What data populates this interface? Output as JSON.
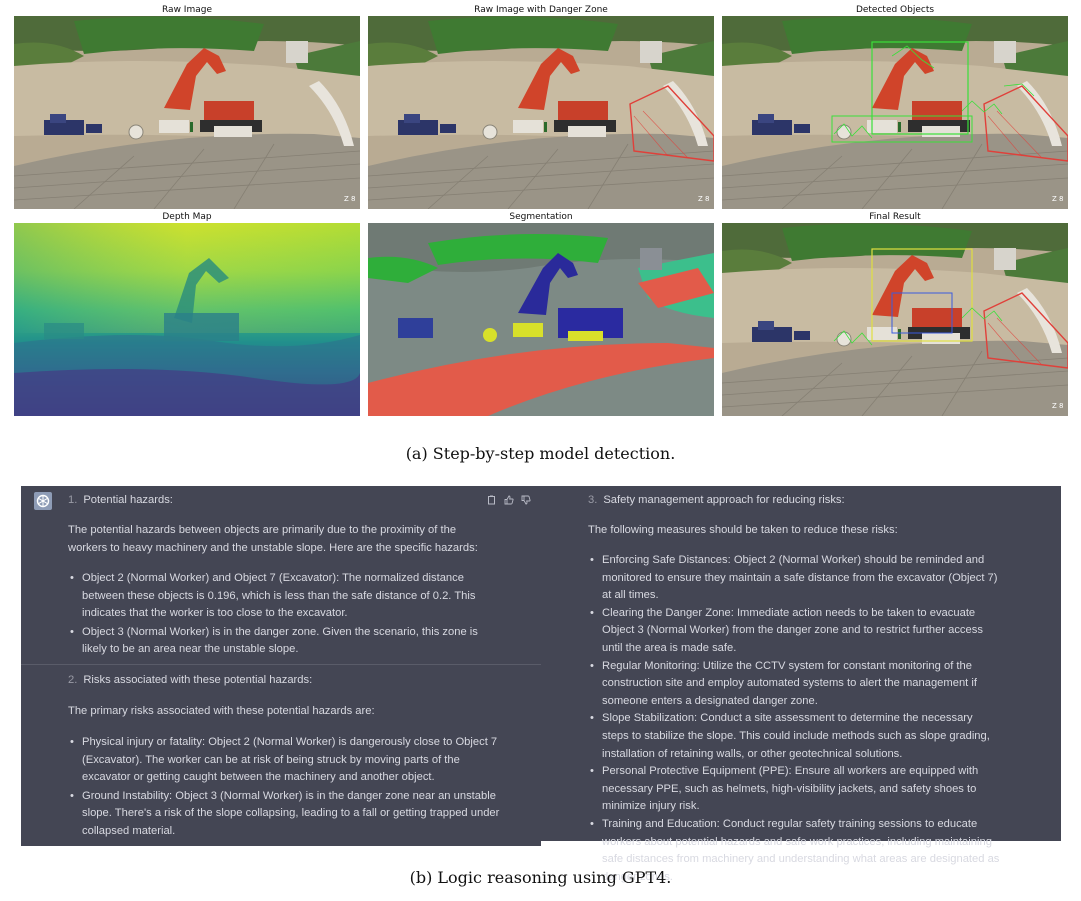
{
  "figure_a": {
    "panels": [
      {
        "title": "Raw Image"
      },
      {
        "title": "Raw Image with Danger Zone"
      },
      {
        "title": "Detected Objects"
      },
      {
        "title": "Depth Map"
      },
      {
        "title": "Segmentation"
      },
      {
        "title": "Final Result"
      }
    ],
    "caption": "(a) Step-by-step model detection."
  },
  "figure_b": {
    "caption": "(b) Logic reasoning using GPT4.",
    "left": {
      "section1": {
        "number": "1.",
        "title": "Potential hazards:",
        "intro": "The potential hazards between objects are primarily due to the proximity of the workers to heavy machinery and the unstable slope. Here are the specific hazards:",
        "bullets": [
          "Object 2 (Normal Worker) and Object 7 (Excavator): The normalized distance between these objects is 0.196, which is less than the safe distance of 0.2. This indicates that the worker is too close to the excavator.",
          "Object 3 (Normal Worker) is in the danger zone. Given the scenario, this zone is likely to be an area near the unstable slope."
        ]
      },
      "section2": {
        "number": "2.",
        "title": "Risks associated with these potential hazards:",
        "intro": "The primary risks associated with these potential hazards are:",
        "bullets": [
          "Physical injury or fatality: Object 2 (Normal Worker) is dangerously close to Object 7 (Excavator). The worker can be at risk of being struck by moving parts of the excavator or getting caught between the machinery and another object.",
          "Ground Instability: Object 3 (Normal Worker) is in the danger zone near an unstable slope. There's a risk of the slope collapsing, leading to a fall or getting trapped under collapsed material."
        ]
      }
    },
    "right": {
      "section3": {
        "number": "3.",
        "title": "Safety management approach for reducing risks:",
        "intro": "The following measures should be taken to reduce these risks:",
        "bullets": [
          "Enforcing Safe Distances: Object 2 (Normal Worker) should be reminded and monitored to ensure they maintain a safe distance from the excavator (Object 7) at all times.",
          "Clearing the Danger Zone: Immediate action needs to be taken to evacuate Object 3 (Normal Worker) from the danger zone and to restrict further access until the area is made safe.",
          "Regular Monitoring: Utilize the CCTV system for constant monitoring of the construction site and employ automated systems to alert the management if someone enters a designated danger zone.",
          "Slope Stabilization: Conduct a site assessment to determine the necessary steps to stabilize the slope. This could include methods such as slope grading, installation of retaining walls, or other geotechnical solutions.",
          "Personal Protective Equipment (PPE): Ensure all workers are equipped with necessary PPE, such as helmets, high-visibility jackets, and safety shoes to minimize injury risk.",
          "Training and Education: Conduct regular safety training sessions to educate workers about potential hazards and safe work practices, including maintaining safe distances from machinery and understanding what areas are designated as danger zones."
        ]
      }
    },
    "icons": [
      "gpt-logo-icon",
      "copy-icon",
      "thumbs-up-icon",
      "thumbs-down-icon"
    ],
    "colors": {
      "panel_bg": "#444654",
      "text": "#d8d9e1",
      "danger_zone": "#e0403a",
      "detection_box": "#3adf3a"
    }
  }
}
